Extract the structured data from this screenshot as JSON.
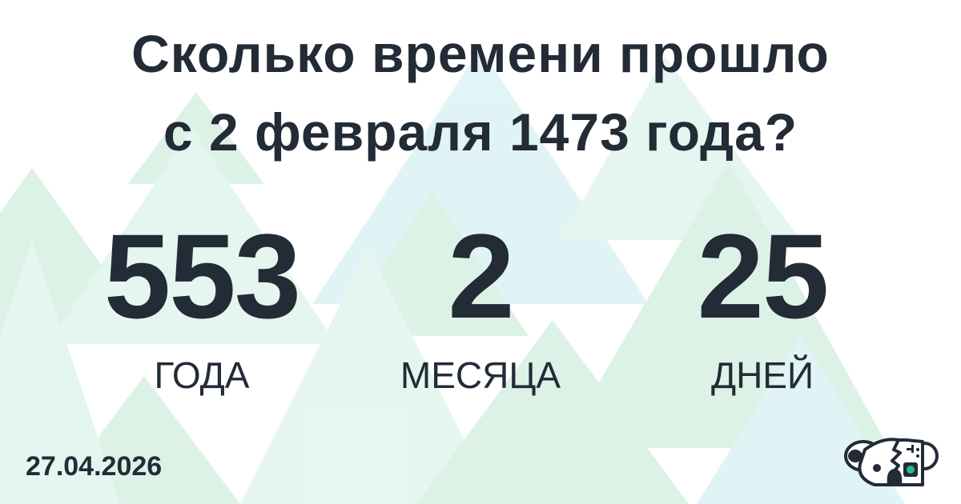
{
  "title": {
    "line1": "Сколько времени прошло",
    "line2": "с 2 февраля 1473 года?"
  },
  "counters": [
    {
      "value": "553",
      "unit": "ГОДА"
    },
    {
      "value": "2",
      "unit": "МЕСЯЦА"
    },
    {
      "value": "25",
      "unit": "ДНЕЙ"
    }
  ],
  "date": "27.04.2026",
  "colors": {
    "text": "#222b36",
    "triangle_green": "#9fdcbc",
    "triangle_teal": "#a9e0e4"
  },
  "logo": {
    "icon": "koala-robot-logo"
  }
}
